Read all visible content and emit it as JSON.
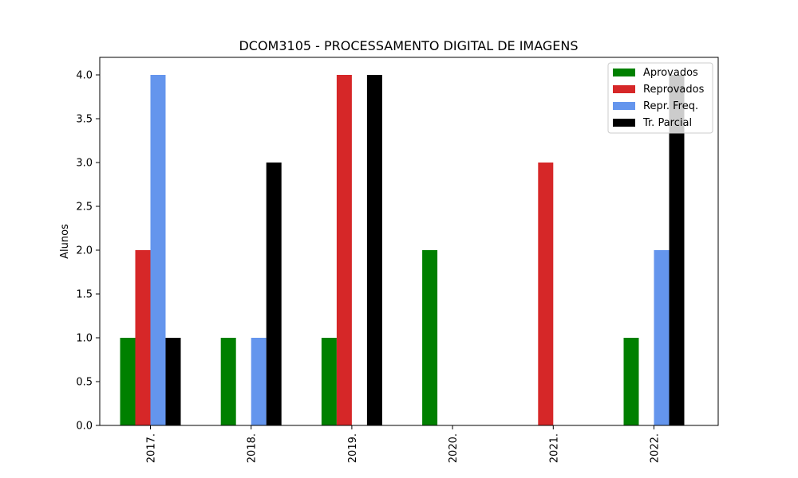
{
  "chart_data": {
    "type": "bar",
    "title": "DCOM3105 - PROCESSAMENTO DIGITAL DE IMAGENS",
    "xlabel": "",
    "ylabel": "Alunos",
    "categories": [
      "2017.",
      "2018.",
      "2019.",
      "2020.",
      "2021.",
      "2022."
    ],
    "ylim": [
      0,
      4.2
    ],
    "yticks": [
      "0.0",
      "0.5",
      "1.0",
      "1.5",
      "2.0",
      "2.5",
      "3.0",
      "3.5",
      "4.0"
    ],
    "grid": false,
    "legend_position": "top-right",
    "series": [
      {
        "name": "Aprovados",
        "color": "#008000",
        "values": [
          1,
          1,
          1,
          2,
          0,
          1
        ]
      },
      {
        "name": "Reprovados",
        "color": "#d62728",
        "values": [
          2,
          0,
          4,
          0,
          3,
          0
        ]
      },
      {
        "name": "Repr. Freq.",
        "color": "#6495ed",
        "values": [
          4,
          1,
          0,
          0,
          0,
          2
        ]
      },
      {
        "name": "Tr. Parcial",
        "color": "#000000",
        "values": [
          1,
          3,
          4,
          0,
          0,
          4
        ]
      }
    ]
  }
}
